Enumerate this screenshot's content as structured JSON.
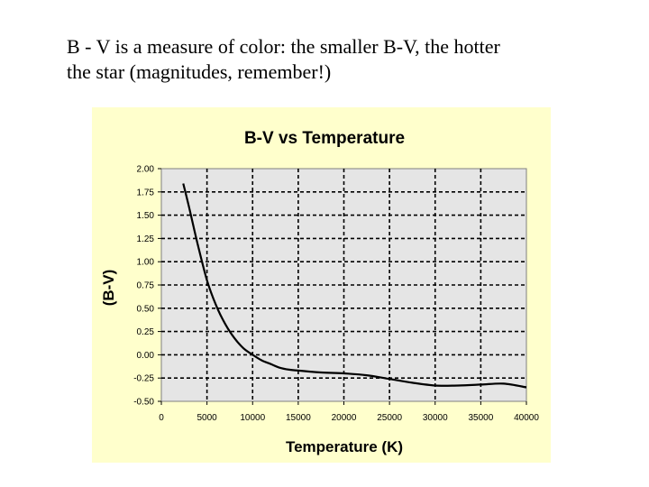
{
  "slide": {
    "caption_line1": "B - V is a measure of color: the smaller B-V, the hotter",
    "caption_line2": "the star (magnitudes, remember!)"
  },
  "colors": {
    "panel_background": "#ffffcc",
    "plot_background": "#e5e5e5",
    "curve": "#000000",
    "gridline": "#000000"
  },
  "chart_data": {
    "type": "line",
    "title": "B-V vs Temperature",
    "xlabel": "Temperature (K)",
    "ylabel": "(B-V)",
    "xlim": [
      0,
      40000
    ],
    "ylim": [
      -0.5,
      2.0
    ],
    "x_ticks": [
      0,
      5000,
      10000,
      15000,
      20000,
      25000,
      30000,
      35000,
      40000
    ],
    "y_ticks": [
      2.0,
      1.75,
      1.5,
      1.25,
      1.0,
      0.75,
      0.5,
      0.25,
      0.0,
      -0.25,
      -0.5
    ],
    "x_tick_labels": [
      "0",
      "5000",
      "10000",
      "15000",
      "20000",
      "25000",
      "30000",
      "35000",
      "40000"
    ],
    "y_tick_labels": [
      "2.00",
      "1.75",
      "1.50",
      "1.25",
      "1.00",
      "0.75",
      "0.50",
      "0.25",
      "0.00",
      "-0.25",
      "-0.50"
    ],
    "grid": "dashed",
    "legend": "none",
    "x": [
      2400,
      3000,
      4000,
      5000,
      6000,
      7000,
      8000,
      9000,
      10000,
      11000,
      12000,
      13000,
      14000,
      15000,
      17500,
      20000,
      22500,
      25000,
      27500,
      30000,
      32500,
      35000,
      37500,
      40000
    ],
    "values": [
      1.84,
      1.6,
      1.18,
      0.8,
      0.53,
      0.33,
      0.18,
      0.07,
      0.0,
      -0.06,
      -0.1,
      -0.14,
      -0.16,
      -0.17,
      -0.19,
      -0.2,
      -0.22,
      -0.26,
      -0.3,
      -0.33,
      -0.33,
      -0.32,
      -0.31,
      -0.35
    ]
  }
}
